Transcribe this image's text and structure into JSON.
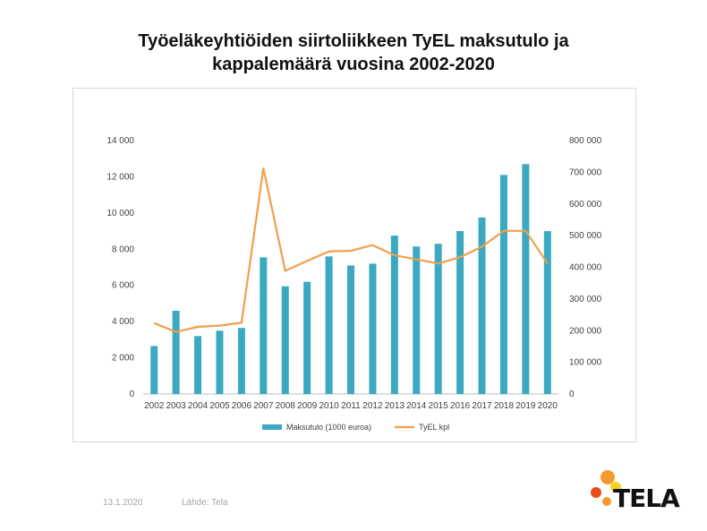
{
  "page": {
    "title_line1": "Työeläkeyhtiöiden siirtoliikkeen TyEL maksutulo ja",
    "title_line2": "kappalemäärä vuosina 2002-2020",
    "date": "13.1.2020",
    "source": "Lähde: Tela",
    "logo_text": "TELA"
  },
  "chart_data": {
    "type": "bar",
    "categories": [
      "2002",
      "2003",
      "2004",
      "2005",
      "2006",
      "2007",
      "2008",
      "2009",
      "2010",
      "2011",
      "2012",
      "2013",
      "2014",
      "2015",
      "2016",
      "2017",
      "2018",
      "2019",
      "2020"
    ],
    "series": [
      {
        "name": "Maksutulo (1000 euroa)",
        "type": "bar",
        "axis": "left",
        "color": "#3aa9c1",
        "values": [
          2650,
          4600,
          3200,
          3500,
          3650,
          7550,
          5950,
          6200,
          7600,
          7100,
          7200,
          8750,
          8150,
          8300,
          9000,
          9750,
          12100,
          12700,
          9000
        ]
      },
      {
        "name": "TyEL kpl",
        "type": "line",
        "axis": "right",
        "color": "#f0a04b",
        "values": [
          224000,
          196000,
          212000,
          216000,
          225000,
          713000,
          389000,
          420000,
          450000,
          452000,
          470000,
          438000,
          425000,
          412000,
          432000,
          465000,
          515000,
          515000,
          412000
        ]
      }
    ],
    "y_left": {
      "min": 0,
      "max": 14000,
      "ticks": [
        0,
        2000,
        4000,
        6000,
        8000,
        10000,
        12000,
        14000
      ],
      "tick_labels": [
        "0",
        "2 000",
        "4 000",
        "6 000",
        "8 000",
        "10 000",
        "12 000",
        "14 000"
      ]
    },
    "y_right": {
      "min": 0,
      "max": 800000,
      "ticks": [
        0,
        100000,
        200000,
        300000,
        400000,
        500000,
        600000,
        700000,
        800000
      ],
      "tick_labels": [
        "0",
        "100 000",
        "200 000",
        "300 000",
        "400 000",
        "500 000",
        "600 000",
        "700 000",
        "800 000"
      ]
    },
    "legend": {
      "position": "bottom",
      "entries": [
        "Maksutulo (1000 euroa)",
        "TyEL kpl"
      ]
    },
    "grid": false
  }
}
